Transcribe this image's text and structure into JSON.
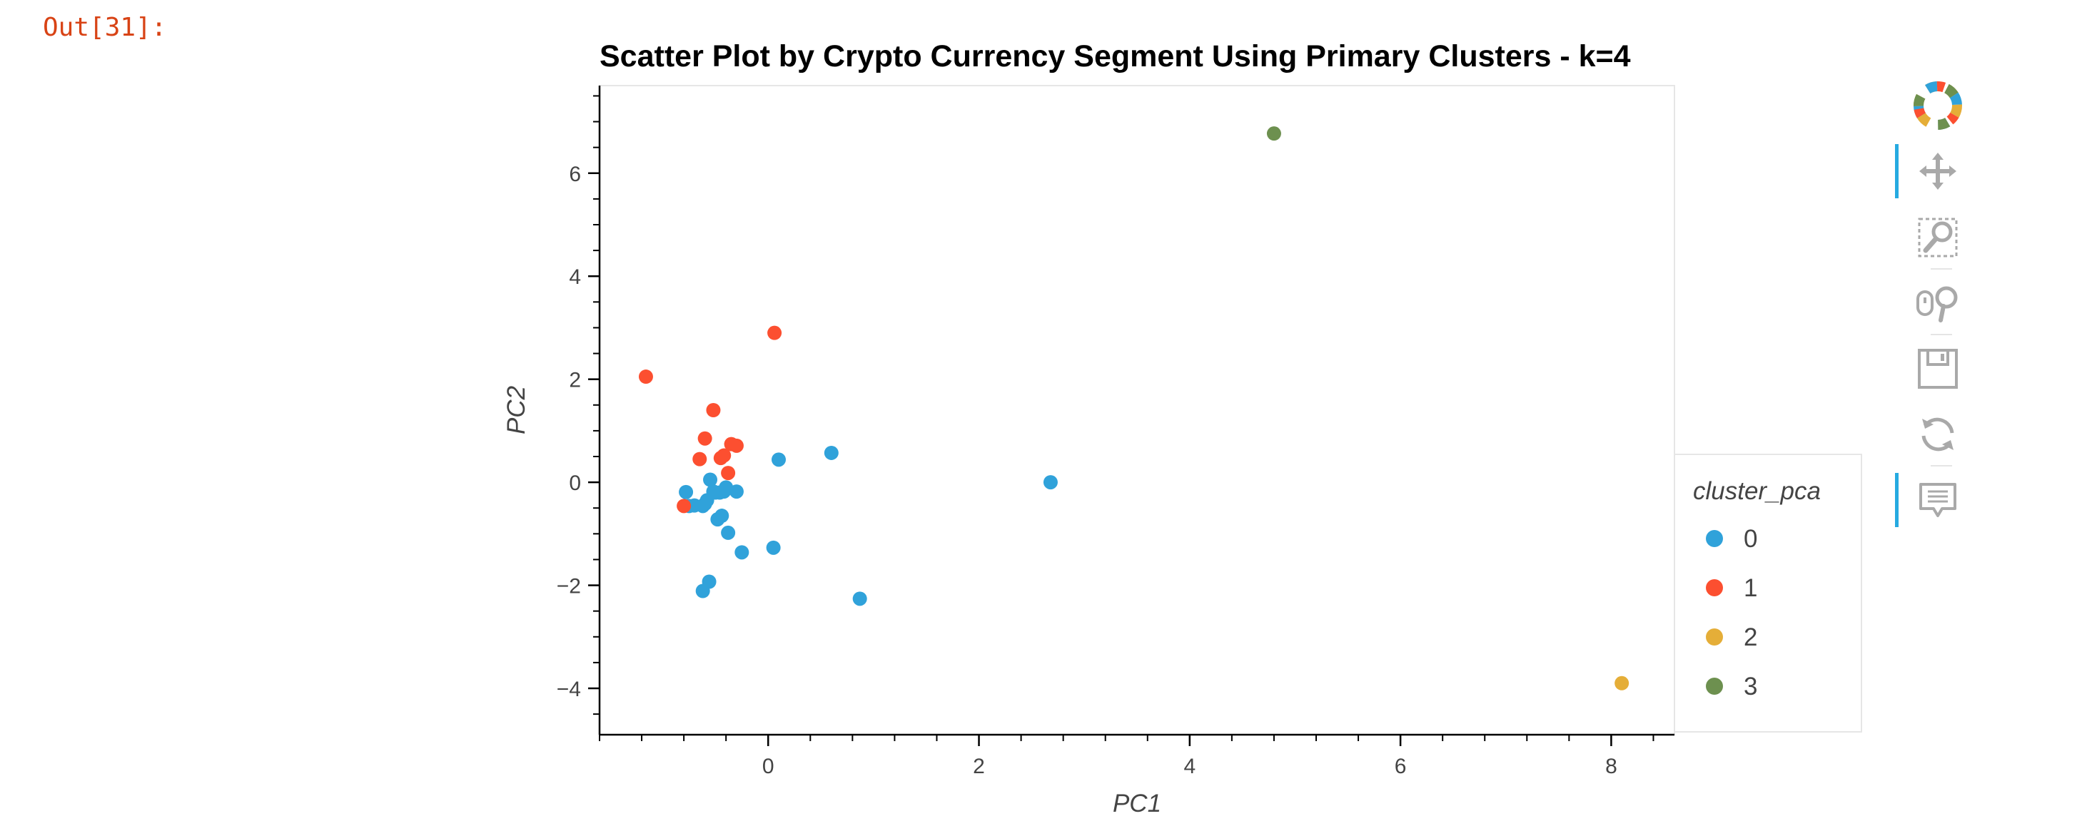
{
  "cell": {
    "out_prompt": "Out[31]:"
  },
  "chart_data": {
    "type": "scatter",
    "title": "Scatter Plot by Crypto Currency Segment Using Primary Clusters - k=4",
    "xlabel": "PC1",
    "ylabel": "PC2",
    "xlim": [
      -1.6,
      8.6
    ],
    "ylim": [
      -4.9,
      7.7
    ],
    "x_ticks": [
      0,
      2,
      4,
      6,
      8
    ],
    "y_ticks": [
      -4,
      -2,
      0,
      2,
      4,
      6
    ],
    "x_tick_labels": [
      "0",
      "2",
      "4",
      "6",
      "8"
    ],
    "y_tick_labels": [
      "−4",
      "−2",
      "0",
      "2",
      "4",
      "6"
    ],
    "grid": false,
    "legend": {
      "title": "cluster_pca",
      "placement": "right"
    },
    "series": [
      {
        "name": "0",
        "color": "#30a2da",
        "x": [
          -0.78,
          -0.75,
          -0.7,
          -0.62,
          -0.6,
          -0.58,
          -0.55,
          -0.52,
          -0.5,
          -0.48,
          -0.46,
          -0.44,
          -0.42,
          -0.4,
          -0.38,
          -0.3,
          -0.25,
          0.05,
          0.1,
          0.6,
          0.87,
          2.68,
          -0.62,
          -0.56
        ],
        "y": [
          -0.19,
          -0.46,
          -0.45,
          -0.46,
          -0.42,
          -0.35,
          0.05,
          -0.18,
          -0.2,
          -0.72,
          -0.2,
          -0.65,
          -0.18,
          -0.1,
          -0.98,
          -0.18,
          -1.36,
          -1.27,
          0.44,
          0.57,
          -2.26,
          0.0,
          -2.11,
          -1.93
        ]
      },
      {
        "name": "1",
        "color": "#fc4f30",
        "x": [
          -1.16,
          -0.8,
          -0.65,
          -0.6,
          -0.52,
          -0.45,
          -0.42,
          -0.38,
          -0.35,
          -0.3,
          0.06
        ],
        "y": [
          2.05,
          -0.46,
          0.45,
          0.85,
          1.4,
          0.47,
          0.52,
          0.18,
          0.74,
          0.71,
          2.9
        ]
      },
      {
        "name": "2",
        "color": "#e5ae38",
        "x": [
          8.1
        ],
        "y": [
          -3.9
        ]
      },
      {
        "name": "3",
        "color": "#6d904f",
        "x": [
          4.8
        ],
        "y": [
          6.77
        ]
      }
    ]
  },
  "toolbar": {
    "logo_icon": "bokeh-logo-icon",
    "tools": [
      {
        "name": "pan-tool-icon",
        "active": true
      },
      {
        "name": "box-zoom-tool-icon",
        "active": false
      },
      {
        "name": "wheel-zoom-tool-icon",
        "active": false
      },
      {
        "name": "save-tool-icon",
        "active": false
      },
      {
        "name": "reset-tool-icon",
        "active": false
      },
      {
        "name": "hover-tool-icon",
        "active": true
      }
    ]
  }
}
